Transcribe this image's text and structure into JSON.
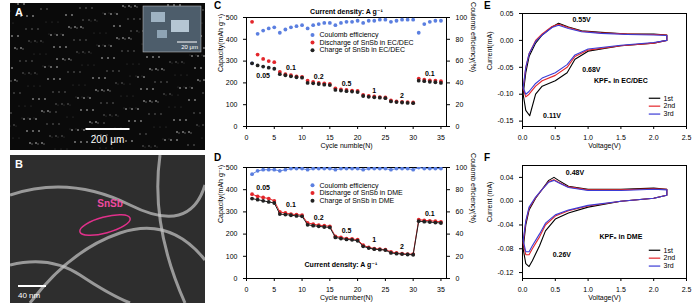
{
  "images": [
    {
      "panel": "A",
      "scale_bar": "200 μm",
      "inset_scale_bar": "20 μm"
    },
    {
      "panel": "B",
      "label": "SnSb",
      "scale_bar": "40 nm"
    }
  ],
  "chart_data": [
    {
      "panel": "C",
      "type": "scatter",
      "marker": "circle",
      "title": "Current density: A g⁻¹",
      "x_label": "Cycle numble(N)",
      "y_label": "Capacity(mAh g⁻¹)",
      "y2_label": "Coulomb efficiency(%)",
      "x": [
        1,
        2,
        3,
        4,
        5,
        6,
        7,
        8,
        9,
        10,
        11,
        12,
        13,
        14,
        15,
        16,
        17,
        18,
        19,
        20,
        21,
        22,
        23,
        24,
        25,
        26,
        27,
        28,
        29,
        30,
        31,
        32,
        33,
        34,
        35
      ],
      "xlim": [
        0,
        36
      ],
      "xticks": [
        0,
        5,
        10,
        15,
        20,
        25,
        30,
        35
      ],
      "ylim": [
        0,
        500
      ],
      "yticks": [
        0,
        100,
        200,
        300,
        400,
        500
      ],
      "y2lim": [
        0,
        100
      ],
      "y2ticks": [
        0,
        20,
        40,
        60,
        80,
        100
      ],
      "legend": "right",
      "series": [
        {
          "name": "Coulomb efficiency",
          "color": "#5b7fe0",
          "axis": "y2",
          "values": [
            58,
            85,
            88,
            90,
            91,
            86,
            89,
            91,
            92,
            93,
            90,
            93,
            94,
            95,
            95,
            93,
            95,
            96,
            96,
            97,
            95,
            97,
            97,
            98,
            98,
            96,
            97,
            98,
            98,
            98,
            86,
            94,
            96,
            97,
            97
          ]
        },
        {
          "name": "Discharge of SnSb in EC/DEC",
          "color": "#e3262b",
          "values": [
            480,
            330,
            310,
            300,
            295,
            250,
            240,
            235,
            230,
            228,
            210,
            205,
            200,
            198,
            195,
            175,
            170,
            168,
            165,
            163,
            145,
            140,
            138,
            135,
            133,
            120,
            115,
            113,
            112,
            110,
            220,
            215,
            212,
            210,
            208
          ]
        },
        {
          "name": "Charge of SnSb in EC/DEC",
          "color": "#222222",
          "values": [
            290,
            280,
            275,
            270,
            265,
            240,
            235,
            230,
            226,
            224,
            200,
            198,
            195,
            192,
            190,
            168,
            165,
            162,
            160,
            158,
            140,
            136,
            134,
            132,
            130,
            115,
            112,
            110,
            108,
            107,
            210,
            208,
            205,
            203,
            200
          ]
        }
      ],
      "annotations": [
        {
          "text": "0.05",
          "x": 3,
          "y": 235
        },
        {
          "text": "0.1",
          "x": 8,
          "y": 270
        },
        {
          "text": "0.2",
          "x": 13,
          "y": 230
        },
        {
          "text": "0.5",
          "x": 18,
          "y": 195
        },
        {
          "text": "1",
          "x": 23,
          "y": 165
        },
        {
          "text": "2",
          "x": 28,
          "y": 140
        },
        {
          "text": "0.1",
          "x": 33,
          "y": 240
        }
      ]
    },
    {
      "panel": "D",
      "type": "line",
      "marker": "circle",
      "x_label": "Cycle number(N)",
      "y_label": "Capacity(mAh g⁻¹)",
      "y2_label": "Coulomb efficiency(%)",
      "x": [
        1,
        2,
        3,
        4,
        5,
        6,
        7,
        8,
        9,
        10,
        11,
        12,
        13,
        14,
        15,
        16,
        17,
        18,
        19,
        20,
        21,
        22,
        23,
        24,
        25,
        26,
        27,
        28,
        29,
        30,
        31,
        32,
        33,
        34,
        35
      ],
      "xlim": [
        0,
        36
      ],
      "xticks": [
        0,
        5,
        10,
        15,
        20,
        25,
        30,
        35
      ],
      "ylim": [
        0,
        500
      ],
      "yticks": [
        0,
        100,
        200,
        300,
        400,
        500
      ],
      "y2lim": [
        0,
        100
      ],
      "y2ticks": [
        0,
        20,
        40,
        60,
        80,
        100
      ],
      "legend": "right",
      "series": [
        {
          "name": "Coulomb efficiency",
          "color": "#5b7fe0",
          "axis": "y2",
          "values": [
            94,
            97,
            98,
            98,
            98,
            97,
            98,
            99,
            99,
            99,
            98,
            99,
            99,
            99,
            99,
            98,
            99,
            99,
            99,
            99,
            98,
            99,
            99,
            99,
            99,
            98,
            99,
            99,
            99,
            98,
            100,
            99,
            99,
            99,
            99
          ]
        },
        {
          "name": "Discharge of SnSb in DME",
          "color": "#e3262b",
          "values": [
            380,
            370,
            365,
            360,
            350,
            300,
            295,
            290,
            288,
            285,
            250,
            245,
            240,
            238,
            235,
            190,
            185,
            180,
            178,
            175,
            150,
            140,
            135,
            132,
            130,
            120,
            115,
            112,
            110,
            110,
            265,
            262,
            260,
            258,
            255
          ]
        },
        {
          "name": "Charge of SnSb in DME",
          "color": "#222222",
          "values": [
            360,
            355,
            350,
            345,
            340,
            290,
            288,
            285,
            282,
            280,
            242,
            238,
            235,
            232,
            230,
            185,
            180,
            176,
            174,
            170,
            145,
            137,
            132,
            130,
            128,
            115,
            112,
            110,
            108,
            107,
            258,
            256,
            254,
            252,
            250
          ]
        }
      ],
      "annotations": [
        {
          "text": "0.05",
          "x": 3,
          "y": 410
        },
        {
          "text": "0.1",
          "x": 8,
          "y": 330
        },
        {
          "text": "0.2",
          "x": 13,
          "y": 275
        },
        {
          "text": "0.5",
          "x": 18,
          "y": 215
        },
        {
          "text": "1",
          "x": 23,
          "y": 175
        },
        {
          "text": "2",
          "x": 28,
          "y": 145
        },
        {
          "text": "0.1",
          "x": 33,
          "y": 290
        },
        {
          "text": "Current density: A g⁻¹",
          "x": 17,
          "y": 60
        }
      ]
    },
    {
      "panel": "E",
      "type": "line",
      "x_label": "Voltage(V)",
      "y_label": "Current(mA)",
      "xlim": [
        0,
        2.5
      ],
      "xticks": [
        {
          "value": 0,
          "label": "0.0"
        },
        0.5,
        {
          "value": 1,
          "label": "1.0"
        },
        1.5,
        {
          "value": 2,
          "label": "2.0"
        },
        2.5
      ],
      "ylim": [
        -0.16,
        0.05
      ],
      "yticks": [
        -0.15,
        {
          "value": -0.1,
          "label": "-0.10"
        },
        -0.05,
        {
          "value": 0,
          "label": "0.00"
        },
        0.05
      ],
      "legend": "bottom-right",
      "series": [
        {
          "name": "1st",
          "color": "#000000",
          "x": [
            2.2,
            2.0,
            1.5,
            1.0,
            0.8,
            0.68,
            0.5,
            0.3,
            0.2,
            0.11,
            0.05,
            0.01,
            0.05,
            0.1,
            0.2,
            0.3,
            0.45,
            0.55,
            0.7,
            0.9,
            1.2,
            1.6,
            2.0,
            2.2,
            2.2
          ],
          "values": [
            0,
            -0.005,
            -0.01,
            -0.02,
            -0.035,
            -0.06,
            -0.075,
            -0.085,
            -0.1,
            -0.14,
            -0.13,
            -0.1,
            -0.06,
            -0.03,
            -0.005,
            0.01,
            0.025,
            0.032,
            0.025,
            0.018,
            0.015,
            0.012,
            0.012,
            0.01,
            0
          ]
        },
        {
          "name": "2nd",
          "color": "#e3262b",
          "x": [
            2.2,
            2.0,
            1.5,
            1.0,
            0.8,
            0.68,
            0.5,
            0.3,
            0.2,
            0.1,
            0.05,
            0.01,
            0.05,
            0.1,
            0.2,
            0.3,
            0.45,
            0.55,
            0.7,
            0.9,
            1.2,
            1.6,
            2.0,
            2.2,
            2.2
          ],
          "values": [
            0,
            -0.005,
            -0.01,
            -0.018,
            -0.03,
            -0.05,
            -0.065,
            -0.075,
            -0.085,
            -0.1,
            -0.105,
            -0.09,
            -0.05,
            -0.025,
            0,
            0.012,
            0.026,
            0.03,
            0.024,
            0.017,
            0.014,
            0.012,
            0.011,
            0.01,
            0
          ]
        },
        {
          "name": "3rd",
          "color": "#3b3bd6",
          "x": [
            2.2,
            2.0,
            1.5,
            1.0,
            0.8,
            0.68,
            0.5,
            0.3,
            0.2,
            0.1,
            0.05,
            0.01,
            0.05,
            0.1,
            0.2,
            0.3,
            0.45,
            0.55,
            0.7,
            0.9,
            1.2,
            1.6,
            2.0,
            2.2,
            2.2
          ],
          "values": [
            0,
            -0.004,
            -0.009,
            -0.016,
            -0.027,
            -0.045,
            -0.06,
            -0.07,
            -0.08,
            -0.095,
            -0.1,
            -0.088,
            -0.05,
            -0.025,
            -0.002,
            0.01,
            0.024,
            0.028,
            0.022,
            0.016,
            0.013,
            0.011,
            0.01,
            0.009,
            0
          ]
        }
      ],
      "annotations": [
        {
          "text": "KPF₆ in EC/DEC",
          "x": 1.5,
          "y": -0.075
        },
        {
          "text": "0.55V",
          "x": 0.9,
          "y": 0.038
        },
        {
          "text": "0.68V",
          "x": 1.05,
          "y": -0.055
        },
        {
          "text": "0.11V",
          "x": 0.45,
          "y": -0.14
        }
      ]
    },
    {
      "panel": "F",
      "type": "line",
      "x_label": "Voltage(V)",
      "y_label": "Current (mA)",
      "xlim": [
        0,
        2.5
      ],
      "xticks": [
        {
          "value": 0,
          "label": "0.0"
        },
        0.5,
        {
          "value": 1,
          "label": "1.0"
        },
        1.5,
        {
          "value": 2,
          "label": "2.0"
        },
        2.5
      ],
      "ylim": [
        -0.13,
        0.06
      ],
      "yticks": [
        -0.12,
        -0.08,
        -0.04,
        {
          "value": 0,
          "label": "0.00"
        },
        0.04
      ],
      "legend": "bottom-right",
      "series": [
        {
          "name": "1st",
          "color": "#000000",
          "x": [
            2.2,
            2.0,
            1.5,
            1.0,
            0.7,
            0.5,
            0.35,
            0.26,
            0.15,
            0.1,
            0.05,
            0.01,
            0.05,
            0.1,
            0.2,
            0.3,
            0.4,
            0.48,
            0.55,
            0.7,
            1.0,
            1.5,
            2.0,
            2.2,
            2.2
          ],
          "values": [
            0.01,
            0.005,
            0,
            -0.01,
            -0.02,
            -0.03,
            -0.05,
            -0.075,
            -0.1,
            -0.11,
            -0.105,
            -0.08,
            -0.04,
            -0.015,
            0.005,
            0.02,
            0.035,
            0.04,
            0.035,
            0.025,
            0.02,
            0.02,
            0.022,
            0.02,
            0.01
          ]
        },
        {
          "name": "2nd",
          "color": "#e3262b",
          "x": [
            2.2,
            2.0,
            1.5,
            1.0,
            0.7,
            0.5,
            0.35,
            0.26,
            0.15,
            0.1,
            0.05,
            0.01,
            0.05,
            0.1,
            0.2,
            0.3,
            0.4,
            0.48,
            0.55,
            0.7,
            1.0,
            1.5,
            2.0,
            2.2,
            2.2
          ],
          "values": [
            0.01,
            0.005,
            0,
            -0.008,
            -0.016,
            -0.025,
            -0.04,
            -0.06,
            -0.08,
            -0.09,
            -0.09,
            -0.07,
            -0.035,
            -0.012,
            0.006,
            0.02,
            0.033,
            0.036,
            0.032,
            0.024,
            0.019,
            0.019,
            0.021,
            0.02,
            0.01
          ]
        },
        {
          "name": "3rd",
          "color": "#3b3bd6",
          "x": [
            2.2,
            2.0,
            1.5,
            1.0,
            0.7,
            0.5,
            0.35,
            0.26,
            0.15,
            0.1,
            0.05,
            0.01,
            0.05,
            0.1,
            0.2,
            0.3,
            0.4,
            0.48,
            0.55,
            0.7,
            1.0,
            1.5,
            2.0,
            2.2,
            2.2
          ],
          "values": [
            0.01,
            0.005,
            0,
            -0.007,
            -0.015,
            -0.023,
            -0.037,
            -0.055,
            -0.075,
            -0.085,
            -0.085,
            -0.066,
            -0.033,
            -0.01,
            0.007,
            0.02,
            0.032,
            0.035,
            0.031,
            0.023,
            0.018,
            0.018,
            0.02,
            0.019,
            0.01
          ]
        }
      ],
      "annotations": [
        {
          "text": "KPF₆ in DME",
          "x": 1.5,
          "y": -0.06
        },
        {
          "text": "0.48V",
          "x": 0.8,
          "y": 0.048
        },
        {
          "text": "0.26V",
          "x": 0.6,
          "y": -0.09
        }
      ]
    }
  ]
}
